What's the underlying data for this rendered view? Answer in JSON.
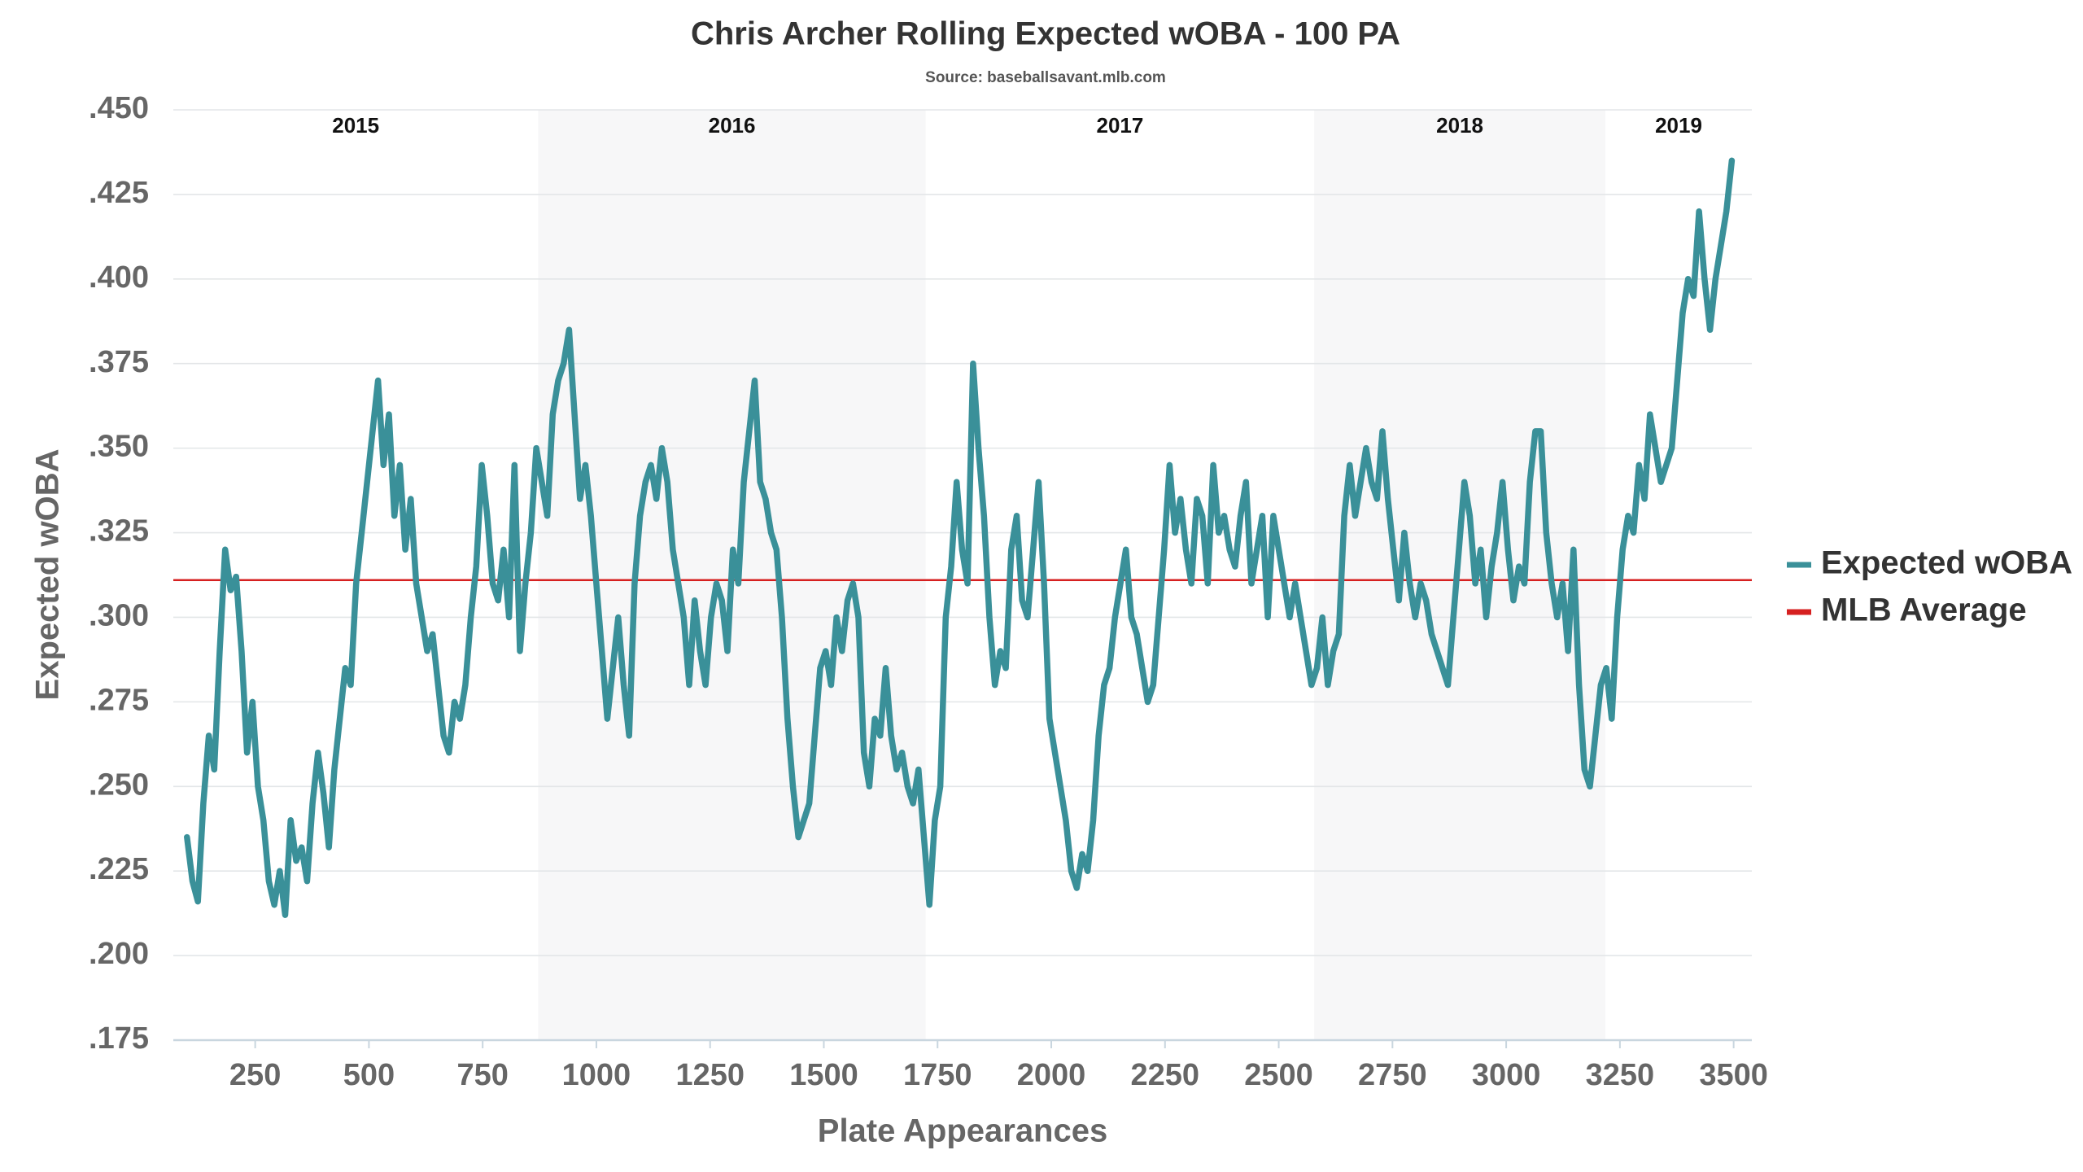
{
  "chart_data": {
    "type": "line",
    "title": "Chris Archer Rolling Expected wOBA - 100 PA",
    "subtitle": "Source: baseballsavant.mlb.com",
    "x_label": "Plate Appearances",
    "y_label": "Expected wOBA",
    "xlim": [
      70,
      3540
    ],
    "xticks": [
      250,
      500,
      750,
      1000,
      1250,
      1500,
      1750,
      2000,
      2250,
      2500,
      2750,
      3000,
      3250,
      3500
    ],
    "ylim": [
      0.175,
      0.45
    ],
    "yticks": [
      {
        "value": 0.175,
        "label": ".175"
      },
      {
        "value": 0.2,
        "label": ".200"
      },
      {
        "value": 0.225,
        "label": ".225"
      },
      {
        "value": 0.25,
        "label": ".250"
      },
      {
        "value": 0.275,
        "label": ".275"
      },
      {
        "value": 0.3,
        "label": ".300"
      },
      {
        "value": 0.325,
        "label": ".325"
      },
      {
        "value": 0.35,
        "label": ".350"
      },
      {
        "value": 0.375,
        "label": ".375"
      },
      {
        "value": 0.4,
        "label": ".400"
      },
      {
        "value": 0.425,
        "label": ".425"
      },
      {
        "value": 0.45,
        "label": ".450"
      }
    ],
    "grid": true,
    "legend": "right",
    "season_labels": [
      "2015",
      "2016",
      "2017",
      "2018",
      "2019"
    ],
    "season_breaks": [
      872,
      1724,
      2578,
      3218
    ],
    "season_shade": "#f7f7f8",
    "reference_line": {
      "name": "MLB Average",
      "color": "#d62020",
      "value": 0.311
    },
    "x": [
      100,
      112,
      124,
      136,
      148,
      160,
      172,
      184,
      196,
      208,
      220,
      232,
      244,
      256,
      268,
      280,
      292,
      304,
      316,
      328,
      340,
      352,
      364,
      376,
      388,
      400,
      412,
      424,
      436,
      448,
      460,
      472,
      484,
      496,
      508,
      520,
      532,
      544,
      556,
      568,
      580,
      592,
      604,
      616,
      628,
      640,
      652,
      664,
      676,
      688,
      700,
      712,
      724,
      736,
      748,
      760,
      772,
      784,
      796,
      808,
      820,
      832,
      844,
      856,
      868,
      880,
      892,
      904,
      916,
      928,
      940,
      952,
      964,
      976,
      988,
      1000,
      1012,
      1024,
      1036,
      1048,
      1060,
      1072,
      1084,
      1096,
      1108,
      1120,
      1132,
      1144,
      1156,
      1168,
      1180,
      1192,
      1204,
      1216,
      1228,
      1240,
      1252,
      1264,
      1276,
      1288,
      1300,
      1312,
      1324,
      1336,
      1348,
      1360,
      1372,
      1384,
      1396,
      1408,
      1420,
      1432,
      1444,
      1456,
      1468,
      1480,
      1492,
      1504,
      1516,
      1528,
      1540,
      1552,
      1564,
      1576,
      1588,
      1600,
      1612,
      1624,
      1636,
      1648,
      1660,
      1672,
      1684,
      1696,
      1708,
      1720,
      1732,
      1744,
      1756,
      1768,
      1780,
      1792,
      1804,
      1816,
      1828,
      1840,
      1852,
      1864,
      1876,
      1888,
      1900,
      1912,
      1924,
      1936,
      1948,
      1960,
      1972,
      1984,
      1996,
      2008,
      2020,
      2032,
      2044,
      2056,
      2068,
      2080,
      2092,
      2104,
      2116,
      2128,
      2140,
      2152,
      2164,
      2176,
      2188,
      2200,
      2212,
      2224,
      2236,
      2248,
      2260,
      2272,
      2284,
      2296,
      2308,
      2320,
      2332,
      2344,
      2356,
      2368,
      2380,
      2392,
      2404,
      2416,
      2428,
      2440,
      2452,
      2464,
      2476,
      2488,
      2500,
      2512,
      2524,
      2536,
      2548,
      2560,
      2572,
      2584,
      2596,
      2608,
      2620,
      2632,
      2644,
      2656,
      2668,
      2680,
      2692,
      2704,
      2716,
      2728,
      2740,
      2752,
      2764,
      2776,
      2788,
      2800,
      2812,
      2824,
      2836,
      2848,
      2860,
      2872,
      2884,
      2896,
      2908,
      2920,
      2932,
      2944,
      2956,
      2968,
      2980,
      2992,
      3004,
      3016,
      3028,
      3040,
      3052,
      3064,
      3076,
      3088,
      3100,
      3112,
      3124,
      3136,
      3148,
      3160,
      3172,
      3184,
      3196,
      3208,
      3220,
      3232,
      3244,
      3256,
      3268,
      3280,
      3292,
      3304,
      3316,
      3328,
      3340,
      3352,
      3364,
      3376,
      3388,
      3400,
      3412,
      3424,
      3436,
      3448,
      3460,
      3472,
      3484,
      3496
    ],
    "series": [
      {
        "name": "Expected wOBA",
        "color": "#3a9099",
        "values": [
          0.235,
          0.222,
          0.216,
          0.245,
          0.265,
          0.255,
          0.29,
          0.32,
          0.308,
          0.312,
          0.29,
          0.26,
          0.275,
          0.25,
          0.24,
          0.222,
          0.215,
          0.225,
          0.212,
          0.24,
          0.228,
          0.232,
          0.222,
          0.245,
          0.26,
          0.248,
          0.232,
          0.255,
          0.27,
          0.285,
          0.28,
          0.31,
          0.325,
          0.34,
          0.355,
          0.37,
          0.345,
          0.36,
          0.33,
          0.345,
          0.32,
          0.335,
          0.31,
          0.3,
          0.29,
          0.295,
          0.28,
          0.265,
          0.26,
          0.275,
          0.27,
          0.28,
          0.3,
          0.315,
          0.345,
          0.33,
          0.31,
          0.305,
          0.32,
          0.3,
          0.345,
          0.29,
          0.31,
          0.325,
          0.35,
          0.34,
          0.33,
          0.36,
          0.37,
          0.375,
          0.385,
          0.36,
          0.335,
          0.345,
          0.33,
          0.31,
          0.29,
          0.27,
          0.285,
          0.3,
          0.28,
          0.265,
          0.31,
          0.33,
          0.34,
          0.345,
          0.335,
          0.35,
          0.34,
          0.32,
          0.31,
          0.3,
          0.28,
          0.305,
          0.29,
          0.28,
          0.3,
          0.31,
          0.305,
          0.29,
          0.32,
          0.31,
          0.34,
          0.355,
          0.37,
          0.34,
          0.335,
          0.325,
          0.32,
          0.3,
          0.27,
          0.25,
          0.235,
          0.24,
          0.245,
          0.265,
          0.285,
          0.29,
          0.28,
          0.3,
          0.29,
          0.305,
          0.31,
          0.3,
          0.26,
          0.25,
          0.27,
          0.265,
          0.285,
          0.265,
          0.255,
          0.26,
          0.25,
          0.245,
          0.255,
          0.235,
          0.215,
          0.24,
          0.25,
          0.3,
          0.315,
          0.34,
          0.32,
          0.31,
          0.375,
          0.35,
          0.33,
          0.3,
          0.28,
          0.29,
          0.285,
          0.32,
          0.33,
          0.305,
          0.3,
          0.32,
          0.34,
          0.31,
          0.27,
          0.26,
          0.25,
          0.24,
          0.225,
          0.22,
          0.23,
          0.225,
          0.24,
          0.265,
          0.28,
          0.285,
          0.3,
          0.31,
          0.32,
          0.3,
          0.295,
          0.285,
          0.275,
          0.28,
          0.3,
          0.32,
          0.345,
          0.325,
          0.335,
          0.32,
          0.31,
          0.335,
          0.33,
          0.31,
          0.345,
          0.325,
          0.33,
          0.32,
          0.315,
          0.33,
          0.34,
          0.31,
          0.32,
          0.33,
          0.3,
          0.33,
          0.32,
          0.31,
          0.3,
          0.31,
          0.3,
          0.29,
          0.28,
          0.285,
          0.3,
          0.28,
          0.29,
          0.295,
          0.33,
          0.345,
          0.33,
          0.34,
          0.35,
          0.34,
          0.335,
          0.355,
          0.335,
          0.32,
          0.305,
          0.325,
          0.31,
          0.3,
          0.31,
          0.305,
          0.295,
          0.29,
          0.285,
          0.28,
          0.3,
          0.32,
          0.34,
          0.33,
          0.31,
          0.32,
          0.3,
          0.315,
          0.325,
          0.34,
          0.32,
          0.305,
          0.315,
          0.31,
          0.34,
          0.355,
          0.355,
          0.325,
          0.31,
          0.3,
          0.31,
          0.29,
          0.32,
          0.28,
          0.255,
          0.25,
          0.265,
          0.28,
          0.285,
          0.27,
          0.3,
          0.32,
          0.33,
          0.325,
          0.345,
          0.335,
          0.36,
          0.35,
          0.34,
          0.345,
          0.35,
          0.37,
          0.39,
          0.4,
          0.395,
          0.42,
          0.4,
          0.385,
          0.4,
          0.41,
          0.42,
          0.435
        ]
      }
    ]
  }
}
